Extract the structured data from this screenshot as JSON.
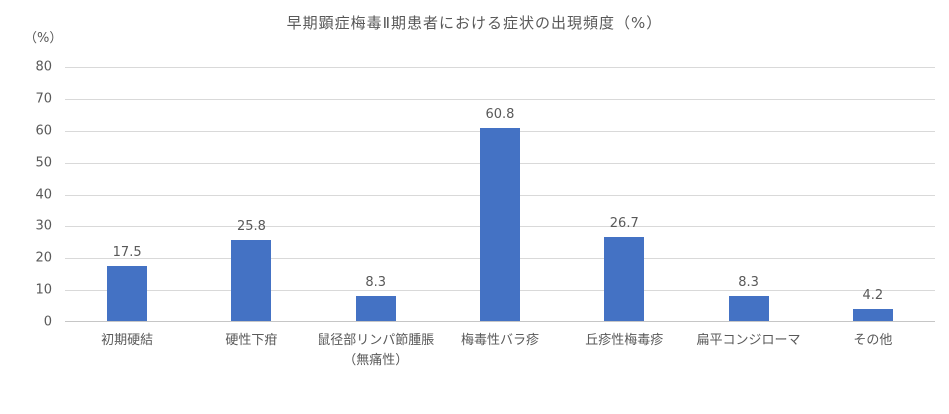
{
  "chart_data": {
    "type": "bar",
    "title": "早期顕症梅毒Ⅱ期患者における症状の出現頻度（%）",
    "ylabel": "（%）",
    "xlabel": "",
    "categories": [
      "初期硬結",
      "硬性下疳",
      "鼠径部リンパ節腫脹\n（無痛性）",
      "梅毒性バラ疹",
      "丘疹性梅毒疹",
      "扁平コンジローマ",
      "その他"
    ],
    "values": [
      17.5,
      25.8,
      8.3,
      60.8,
      26.7,
      8.3,
      4.2
    ],
    "data_labels": [
      "17.5",
      "25.8",
      "8.3",
      "60.8",
      "26.7",
      "8.3",
      "4.2"
    ],
    "ylim": [
      0,
      80
    ],
    "ytick_step": 10,
    "ytick_labels": [
      "0",
      "10",
      "20",
      "30",
      "40",
      "50",
      "60",
      "70",
      "80"
    ],
    "grid": "horizontal",
    "legend_position": "none",
    "bar_color": "#4472C4",
    "text_color": "#595959",
    "gridline_color": "#D9D9D9",
    "axis_line_color": "#C6C6C6",
    "background_color": "#FFFFFF"
  }
}
